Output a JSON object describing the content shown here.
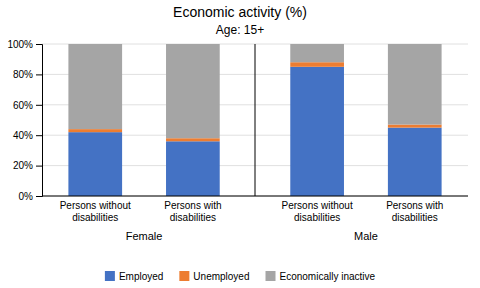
{
  "chart_data": {
    "type": "bar",
    "stacked": true,
    "title": "Economic activity (%)",
    "subtitle": "Age: 15+",
    "groups": [
      "Female",
      "Male"
    ],
    "categories": [
      "Persons without\ndisabilities",
      "Persons with\ndisabilities",
      "Persons without\ndisabilities",
      "Persons with\ndisabilities"
    ],
    "series": [
      {
        "name": "Employed",
        "color": "#4472C4",
        "values": [
          42,
          36,
          85,
          45
        ]
      },
      {
        "name": "Unemployed",
        "color": "#ED7D31",
        "values": [
          2,
          2,
          3,
          2
        ]
      },
      {
        "name": "Economically inactive",
        "color": "#A5A5A5",
        "values": [
          56,
          62,
          12,
          53
        ]
      }
    ],
    "ylim": [
      0,
      100
    ],
    "yticks": [
      {
        "value": 0,
        "label": "0%"
      },
      {
        "value": 20,
        "label": "20%"
      },
      {
        "value": 40,
        "label": "40%"
      },
      {
        "value": 60,
        "label": "60%"
      },
      {
        "value": 80,
        "label": "80%"
      },
      {
        "value": 100,
        "label": "100%"
      }
    ],
    "grid": true,
    "legend": "bottom"
  }
}
